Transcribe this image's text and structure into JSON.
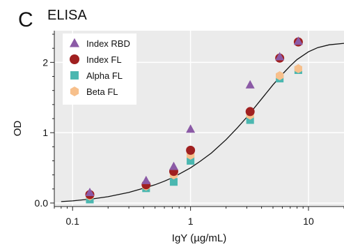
{
  "panel": {
    "letter": "C",
    "title": "ELISA"
  },
  "chart_data": {
    "type": "scatter",
    "title": "ELISA",
    "xlabel": "IgY (µg/mL)",
    "ylabel": "OD",
    "x_scale": "log",
    "xlim": [
      0.07,
      20
    ],
    "ylim": [
      -0.05,
      2.45
    ],
    "grid": true,
    "legend_position": "top-left",
    "x_ticks": [
      {
        "value": 0.1,
        "label": "0.1"
      },
      {
        "value": 1,
        "label": "1"
      },
      {
        "value": 10,
        "label": "10"
      }
    ],
    "y_ticks": [
      {
        "value": 0,
        "label": "0.0"
      },
      {
        "value": 1,
        "label": "1"
      },
      {
        "value": 2,
        "label": "2"
      }
    ],
    "series": [
      {
        "name": "Index RBD",
        "marker": "triangle",
        "color": "#8b5aa6",
        "x": [
          0.14,
          0.42,
          0.72,
          1.0,
          3.2,
          5.7,
          8.2
        ],
        "y": [
          0.15,
          0.32,
          0.52,
          1.05,
          1.68,
          2.08,
          2.3
        ]
      },
      {
        "name": "Index FL",
        "marker": "circle",
        "color": "#a02020",
        "x": [
          0.14,
          0.42,
          0.72,
          1.0,
          3.2,
          5.7,
          8.2
        ],
        "y": [
          0.12,
          0.26,
          0.45,
          0.75,
          1.3,
          2.06,
          2.29
        ]
      },
      {
        "name": "Alpha FL",
        "marker": "square",
        "color": "#4bb7b0",
        "x": [
          0.14,
          0.42,
          0.72,
          1.0,
          3.2,
          5.7,
          8.2
        ],
        "y": [
          0.05,
          0.21,
          0.3,
          0.6,
          1.18,
          1.77,
          1.89
        ]
      },
      {
        "name": "Beta FL",
        "marker": "hexagon",
        "color": "#f7c08c",
        "x": [
          0.14,
          0.42,
          0.72,
          1.0,
          3.2,
          5.7,
          8.2
        ],
        "y": [
          0.1,
          0.24,
          0.4,
          0.68,
          1.25,
          1.81,
          1.91
        ]
      }
    ],
    "fit_curve": {
      "x": [
        0.08,
        0.1,
        0.15,
        0.2,
        0.3,
        0.4,
        0.5,
        0.6,
        0.7,
        0.8,
        1.0,
        1.2,
        1.5,
        2.0,
        2.5,
        3.0,
        4.0,
        5.0,
        6.0,
        7.0,
        8.0,
        10,
        12,
        15,
        20
      ],
      "y": [
        0.02,
        0.03,
        0.06,
        0.09,
        0.15,
        0.21,
        0.26,
        0.31,
        0.36,
        0.41,
        0.5,
        0.59,
        0.71,
        0.9,
        1.07,
        1.22,
        1.48,
        1.68,
        1.83,
        1.95,
        2.04,
        2.15,
        2.21,
        2.25,
        2.27
      ]
    }
  }
}
